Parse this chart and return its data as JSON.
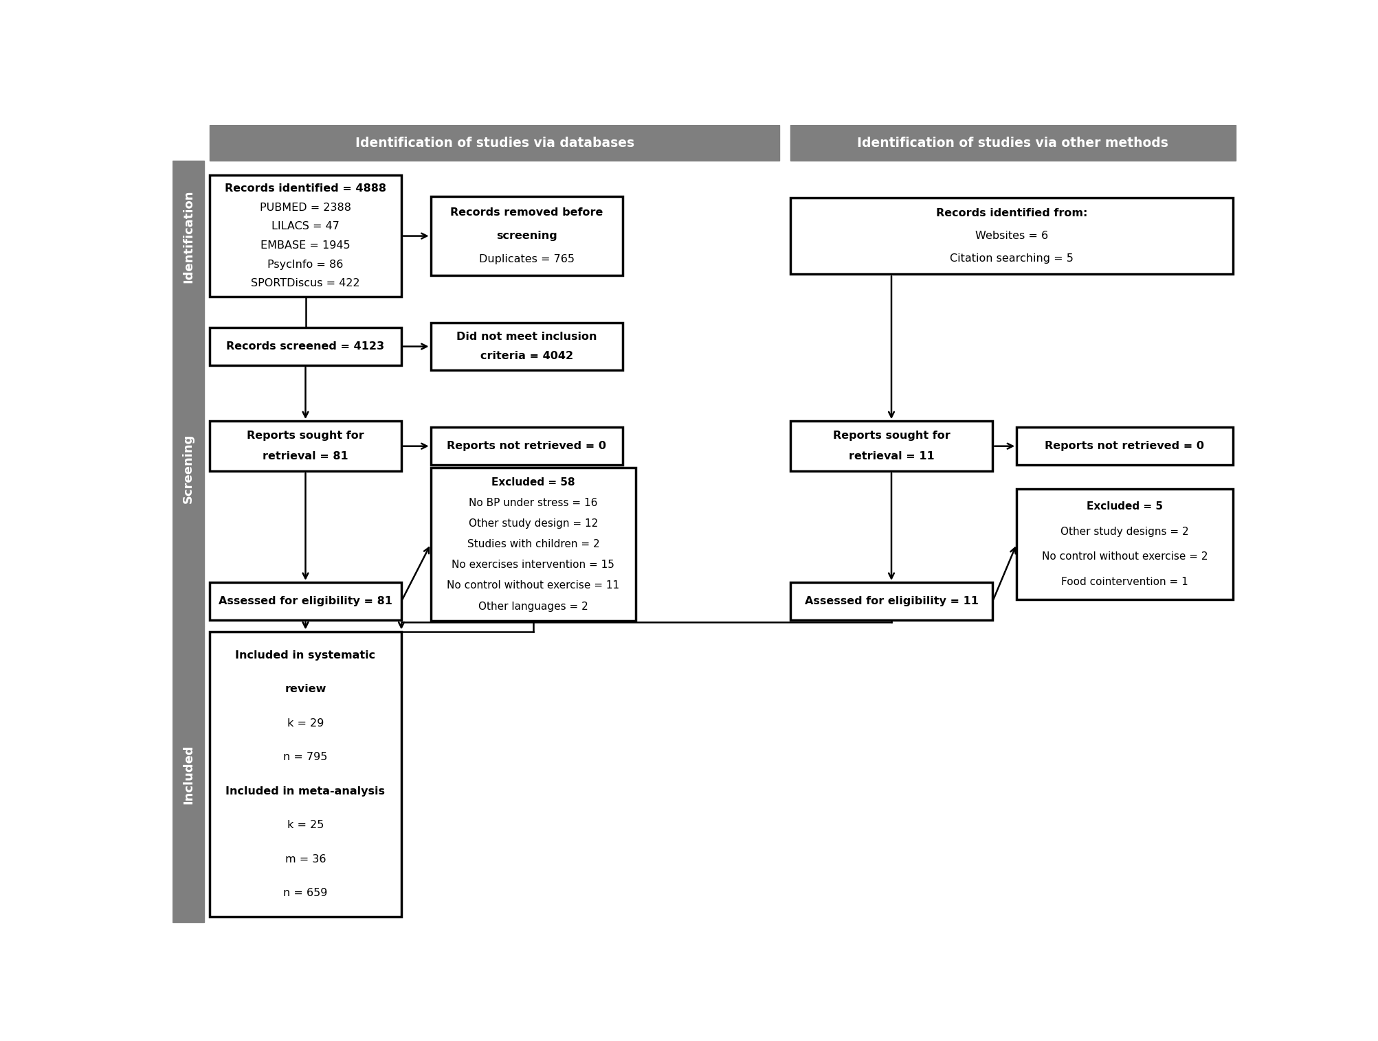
{
  "header_bg": "#7f7f7f",
  "header_text_color": "#ffffff",
  "side_label_bg": "#7f7f7f",
  "side_label_text_color": "#ffffff",
  "box_bg": "#ffffff",
  "box_border": "#000000",
  "box_text_color": "#000000",
  "arrow_color": "#000000",
  "fig_bg": "#ffffff",
  "header_left": "Identification of studies via databases",
  "header_right": "Identification of studies via other methods",
  "side_labels": [
    "Identification",
    "Screening",
    "Included"
  ]
}
